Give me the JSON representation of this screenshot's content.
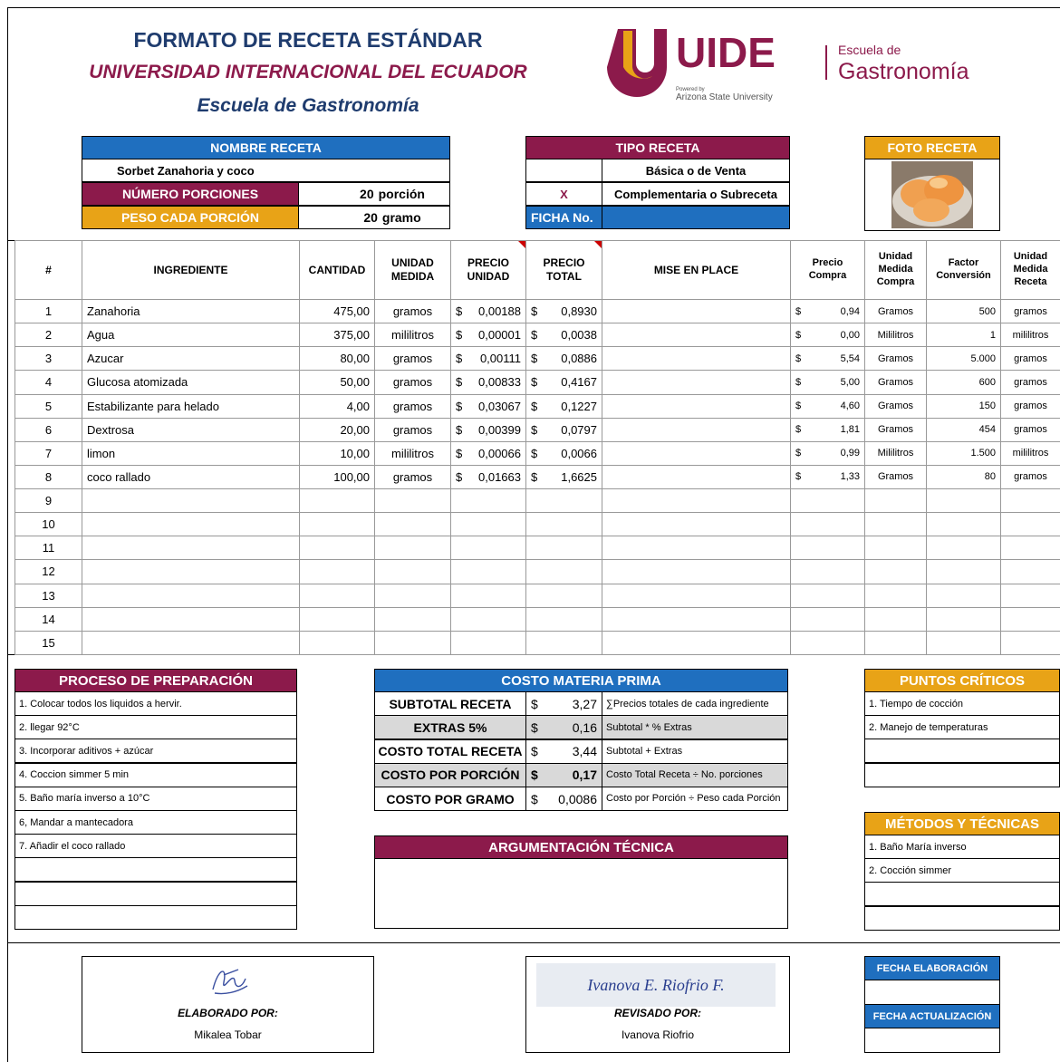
{
  "header": {
    "title": "FORMATO DE RECETA ESTÁNDAR",
    "university": "UNIVERSIDAD INTERNACIONAL DEL ECUADOR",
    "school": "Escuela de Gastronomía"
  },
  "logo": {
    "brand": "UIDE",
    "powered_by": "Powered by",
    "partner": "Arizona State University",
    "school_line1": "Escuela de",
    "school_line2": "Gastronomía"
  },
  "recipe": {
    "name_label": "NOMBRE RECETA",
    "name": "Sorbet Zanahoria y coco",
    "portions_label": "NÚMERO PORCIONES",
    "portions": "20",
    "portions_unit": "porción",
    "weight_label": "PESO CADA PORCIÓN",
    "weight": "20",
    "weight_unit": "gramo"
  },
  "recipe_type": {
    "label": "TIPO RECETA",
    "options": [
      {
        "name": "Básica o de Venta"
      },
      {
        "mark": "X",
        "name": "Complementaria o Subreceta"
      }
    ],
    "sheet_label": "FICHA No."
  },
  "photo": {
    "label": "FOTO RECETA"
  },
  "table": {
    "currency": "$",
    "columns": [
      "#",
      "INGREDIENTE",
      "CANTIDAD",
      "UNIDAD MEDIDA",
      "PRECIO UNIDAD",
      "PRECIO TOTAL",
      "MISE EN PLACE",
      "Precio Compra",
      "Unidad Medida Compra",
      "Factor Conversión",
      "Unidad Medida Receta"
    ],
    "rows": [
      {
        "n": "1",
        "ingredient": "Zanahoria",
        "quantity": "475,00",
        "unit": "gramos",
        "unit_price": "0,00188",
        "total_price": "0,8930",
        "purchase_price": "0,94",
        "purchase_unit": "Gramos",
        "factor": "500",
        "recipe_unit": "gramos"
      },
      {
        "n": "2",
        "ingredient": "Agua",
        "quantity": "375,00",
        "unit": "mililitros",
        "unit_price": "0,00001",
        "total_price": "0,0038",
        "purchase_price": "0,00",
        "purchase_unit": "Mililitros",
        "factor": "1",
        "recipe_unit": "mililitros"
      },
      {
        "n": "3",
        "ingredient": "Azucar",
        "quantity": "80,00",
        "unit": "gramos",
        "unit_price": "0,00111",
        "total_price": "0,0886",
        "purchase_price": "5,54",
        "purchase_unit": "Gramos",
        "factor": "5.000",
        "recipe_unit": "gramos"
      },
      {
        "n": "4",
        "ingredient": "Glucosa atomizada",
        "quantity": "50,00",
        "unit": "gramos",
        "unit_price": "0,00833",
        "total_price": "0,4167",
        "purchase_price": "5,00",
        "purchase_unit": "Gramos",
        "factor": "600",
        "recipe_unit": "gramos"
      },
      {
        "n": "5",
        "ingredient": "Estabilizante para helado",
        "quantity": "4,00",
        "unit": "gramos",
        "unit_price": "0,03067",
        "total_price": "0,1227",
        "purchase_price": "4,60",
        "purchase_unit": "Gramos",
        "factor": "150",
        "recipe_unit": "gramos"
      },
      {
        "n": "6",
        "ingredient": "Dextrosa",
        "quantity": "20,00",
        "unit": "gramos",
        "unit_price": "0,00399",
        "total_price": "0,0797",
        "purchase_price": "1,81",
        "purchase_unit": "Gramos",
        "factor": "454",
        "recipe_unit": "gramos"
      },
      {
        "n": "7",
        "ingredient": "limon",
        "quantity": "10,00",
        "unit": "mililitros",
        "unit_price": "0,00066",
        "total_price": "0,0066",
        "purchase_price": "0,99",
        "purchase_unit": "Mililitros",
        "factor": "1.500",
        "recipe_unit": "mililitros"
      },
      {
        "n": "8",
        "ingredient": "coco rallado",
        "quantity": "100,00",
        "unit": "gramos",
        "unit_price": "0,01663",
        "total_price": "1,6625",
        "purchase_price": "1,33",
        "purchase_unit": "Gramos",
        "factor": "80",
        "recipe_unit": "gramos"
      },
      {
        "n": "9"
      },
      {
        "n": "10"
      },
      {
        "n": "11"
      },
      {
        "n": "12"
      },
      {
        "n": "13"
      },
      {
        "n": "14"
      },
      {
        "n": "15"
      }
    ]
  },
  "process": {
    "label": "PROCESO DE PREPARACIÓN",
    "steps": [
      "1. Colocar todos los liquidos a hervir.",
      "2. llegar 92°C",
      "3. Incorporar aditivos + azúcar",
      "4. Coccion simmer 5 min",
      "5. Baño maría inverso a 10°C",
      "6, Mandar a mantecadora",
      "7. Añadir el coco rallado"
    ]
  },
  "costs": {
    "label": "COSTO MATERIA PRIMA",
    "rows": [
      {
        "label": "SUBTOTAL RECETA",
        "value": "3,27",
        "formula": "∑Precios totales de cada ingrediente"
      },
      {
        "label": "EXTRAS 5%",
        "value": "0,16",
        "formula": "Subtotal * % Extras"
      },
      {
        "label": "COSTO TOTAL RECETA",
        "value": "3,44",
        "formula": "Subtotal + Extras"
      },
      {
        "label": "COSTO POR PORCIÓN",
        "value": "0,17",
        "formula": "Costo Total Receta ÷ No. porciones"
      },
      {
        "label": "COSTO POR GRAMO",
        "value": "0,0086",
        "formula": "Costo por Porción ÷ Peso cada Porción"
      }
    ]
  },
  "argumentation": {
    "label": "ARGUMENTACIÓN TÉCNICA"
  },
  "critical_points": {
    "label": "PUNTOS CRÍTICOS",
    "items": [
      "1. Tiempo de cocción",
      "2. Manejo de temperaturas"
    ]
  },
  "methods": {
    "label": "MÉTODOS Y TÉCNICAS",
    "items": [
      "1. Baño María inverso",
      "2. Cocción simmer"
    ]
  },
  "signatures": [
    {
      "label": "ELABORADO POR:",
      "name": "Mikalea Tobar"
    },
    {
      "label": "REVISADO POR:",
      "name": "Ivanova Riofrio",
      "signature": "Ivanova E. Riofrio F."
    }
  ],
  "dates": {
    "created_label": "FECHA ELABORACIÓN",
    "updated_label": "FECHA ACTUALIZACIÓN"
  }
}
